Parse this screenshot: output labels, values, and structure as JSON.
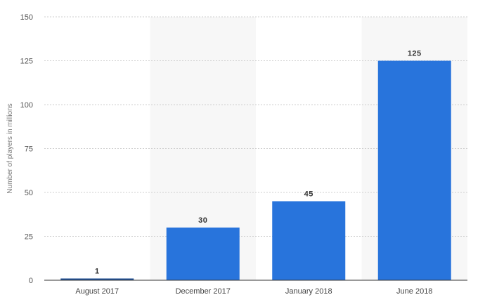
{
  "chart_data": {
    "type": "bar",
    "categories": [
      "August 2017",
      "December 2017",
      "January 2018",
      "June 2018"
    ],
    "values": [
      1,
      30,
      45,
      125
    ],
    "data_labels": [
      "1",
      "30",
      "45",
      "125"
    ],
    "ylabel": "Number of players in millions",
    "xlabel": "",
    "title": "",
    "ylim": [
      0,
      150
    ],
    "yticks": [
      "0",
      "25",
      "50",
      "75",
      "100",
      "125",
      "150"
    ],
    "grid": true,
    "colors": {
      "bar": "#2874dc",
      "first_bar": "#1f4f96",
      "band": "#f7f7f7",
      "grid": "#cfcfcf",
      "axis": "#333333"
    }
  }
}
